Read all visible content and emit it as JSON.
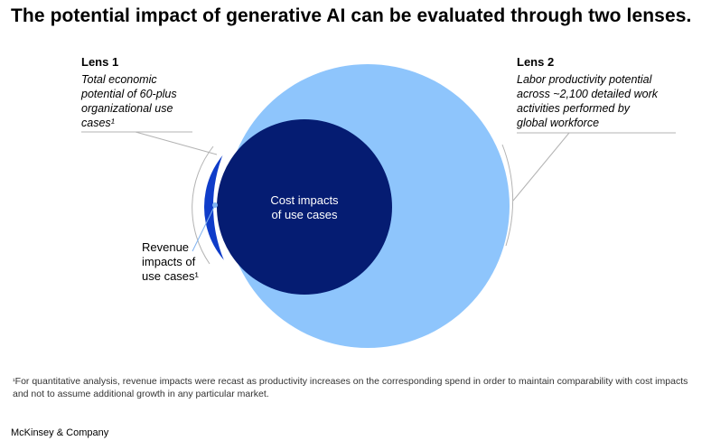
{
  "header": {
    "title": "The potential impact of generative AI can be evaluated through two lenses."
  },
  "lens1": {
    "heading": "Lens 1",
    "description": "Total economic\npotential of 60-plus\norganizational use\ncases¹"
  },
  "lens2": {
    "heading": "Lens 2",
    "description": "Labor productivity potential\nacross ~2,100 detailed work\nactivities performed by\nglobal workforce"
  },
  "diagram": {
    "center_label": "Cost impacts\nof use cases",
    "revenue_label": "Revenue\nimpacts of\nuse cases¹",
    "colors": {
      "large_circle": "#8ec5fc",
      "revenue_crescent": "#0f3cc9",
      "cost_circle": "#051c72",
      "leader_line": "#b3b3b3",
      "revenue_leader": "#7fb2f0"
    }
  },
  "footnote": {
    "marker": "¹",
    "text": "For quantitative analysis, revenue impacts were recast as productivity increases on the corresponding spend in order to maintain comparability with cost impacts and not to assume additional growth in any particular market."
  },
  "footer": {
    "brand": "McKinsey & Company"
  }
}
